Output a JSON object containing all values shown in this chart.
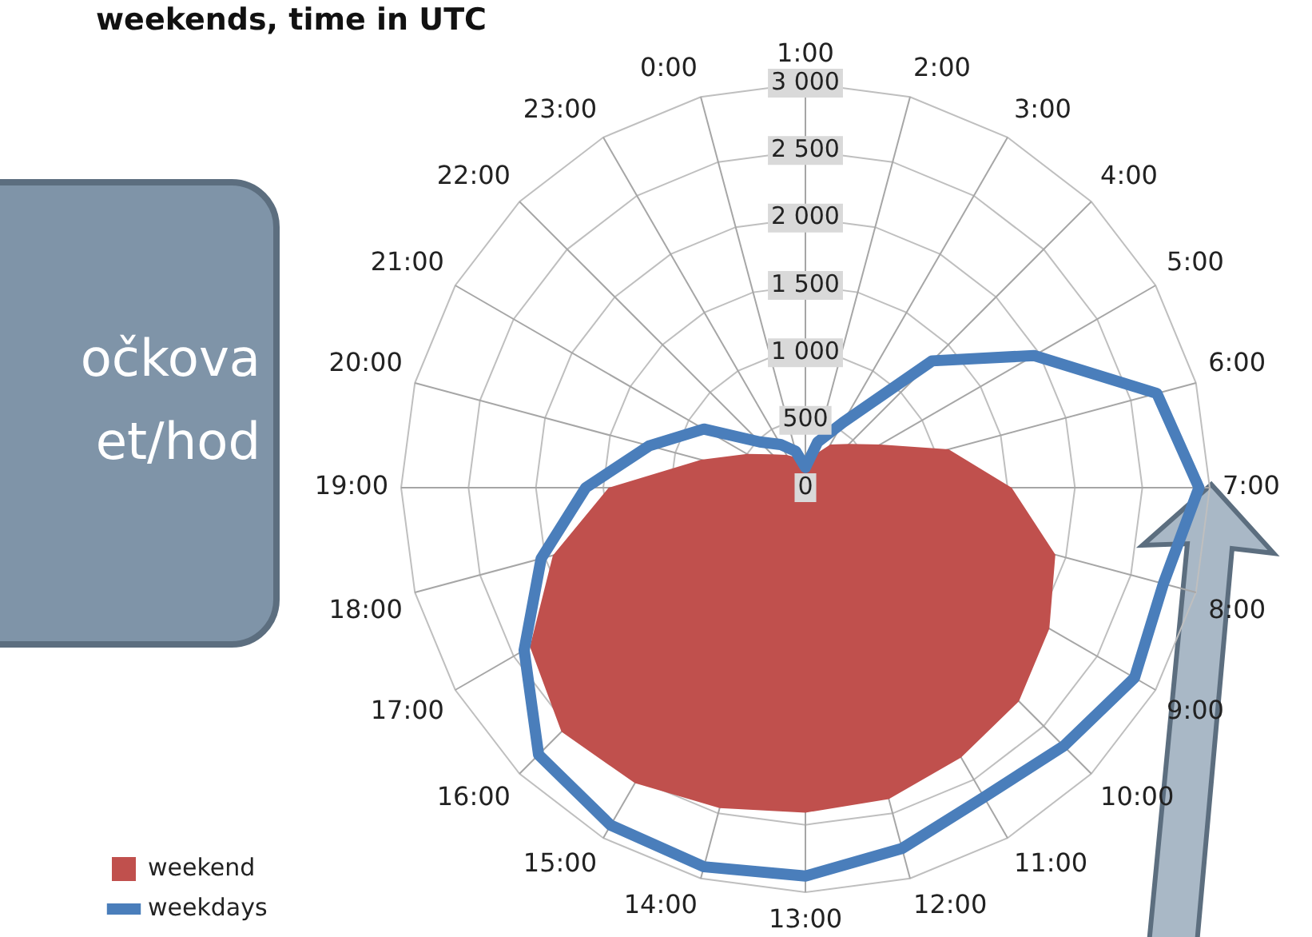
{
  "chart_data": {
    "type": "radar",
    "title": "weekends, time in UTC",
    "categories": [
      "1:00",
      "2:00",
      "3:00",
      "4:00",
      "5:00",
      "6:00",
      "7:00",
      "8:00",
      "9:00",
      "10:00",
      "11:00",
      "12:00",
      "13:00",
      "14:00",
      "15:00",
      "16:00",
      "17:00",
      "18:00",
      "19:00",
      "20:00",
      "21:00",
      "22:00",
      "23:00",
      "0:00"
    ],
    "series": [
      {
        "name": "weekend",
        "type": "area",
        "color": "#c0504d",
        "values": [
          200,
          250,
          370,
          460,
          640,
          1100,
          1530,
          1920,
          2090,
          2240,
          2310,
          2390,
          2410,
          2460,
          2530,
          2560,
          2360,
          1940,
          1460,
          800,
          500,
          350,
          280,
          230
        ]
      },
      {
        "name": "weekdays",
        "color": "#4a7ebb",
        "values": [
          150,
          350,
          560,
          1330,
          1960,
          2700,
          2920,
          2750,
          2820,
          2710,
          2650,
          2770,
          2880,
          2910,
          2890,
          2800,
          2410,
          2030,
          1630,
          1200,
          870,
          480,
          370,
          280
        ]
      }
    ],
    "ylim": [
      0,
      3000
    ],
    "yticks": [
      0,
      500,
      {
        "value": 1000,
        "label": "1 000"
      },
      {
        "value": 1500,
        "label": "1 500"
      },
      {
        "value": 2000,
        "label": "2 000"
      },
      {
        "value": 2500,
        "label": "2 500"
      },
      {
        "value": 3000,
        "label": "3 000"
      }
    ],
    "grid": true,
    "legend": "bottom left",
    "marker": "none",
    "annotations": [
      "očkova",
      "et/hod"
    ]
  }
}
